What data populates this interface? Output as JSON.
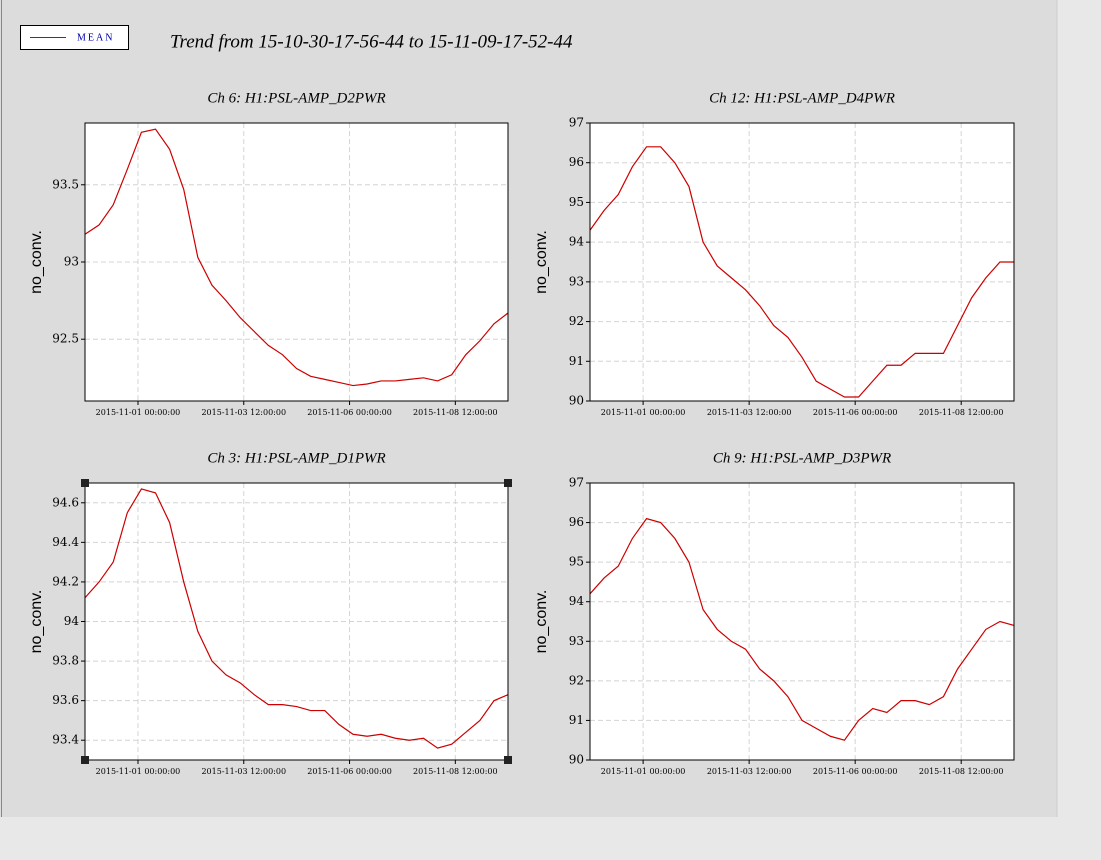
{
  "title": "Trend from 15-10-30-17-56-44 to 15-11-09-17-52-44",
  "chart_data": [
    {
      "type": "line",
      "title": "Ch 6: H1:PSL-AMP_D2PWR",
      "ylabel": "no_conv.",
      "x": [
        "2015-10-30 17:56:44",
        "2015-10-31 01:56:44",
        "2015-10-31 09:56:44",
        "2015-10-31 17:56:44",
        "2015-11-01 01:56:44",
        "2015-11-01 09:56:44",
        "2015-11-01 17:56:44",
        "2015-11-02 01:56:44",
        "2015-11-02 09:56:44",
        "2015-11-02 17:56:44",
        "2015-11-03 01:56:44",
        "2015-11-03 09:56:44",
        "2015-11-03 17:56:44",
        "2015-11-04 01:56:44",
        "2015-11-04 09:56:44",
        "2015-11-04 17:56:44",
        "2015-11-05 01:56:44",
        "2015-11-05 09:56:44",
        "2015-11-05 17:56:44",
        "2015-11-06 01:56:44",
        "2015-11-06 09:56:44",
        "2015-11-06 17:56:44",
        "2015-11-07 01:56:44",
        "2015-11-07 09:56:44",
        "2015-11-07 17:56:44",
        "2015-11-08 01:56:44",
        "2015-11-08 09:56:44",
        "2015-11-08 17:56:44",
        "2015-11-09 01:56:44",
        "2015-11-09 09:56:44",
        "2015-11-09 17:52:44"
      ],
      "series": [
        {
          "name": "MEAN",
          "color": "#cc0000",
          "values": [
            93.18,
            93.24,
            93.37,
            93.6,
            93.84,
            93.86,
            93.73,
            93.47,
            93.03,
            92.85,
            92.75,
            92.64,
            92.55,
            92.46,
            92.4,
            92.31,
            92.26,
            92.24,
            92.22,
            92.2,
            92.21,
            92.23,
            92.23,
            92.24,
            92.25,
            92.23,
            92.27,
            92.4,
            92.49,
            92.6,
            92.67
          ]
        }
      ],
      "xlim": [
        "2015-10-30 17:56:44",
        "2015-11-09 17:52:44"
      ],
      "xticks": [
        "2015-11-01 00:00:00",
        "2015-11-03 12:00:00",
        "2015-11-06 00:00:00",
        "2015-11-08 12:00:00"
      ],
      "ylim": [
        92.1,
        93.9
      ],
      "yticks": [
        92.5,
        93,
        93.5
      ],
      "grid": true
    },
    {
      "type": "line",
      "title": "Ch 12: H1:PSL-AMP_D4PWR",
      "ylabel": "no_conv.",
      "x": [
        "2015-10-30 17:56:44",
        "2015-10-31 01:56:44",
        "2015-10-31 09:56:44",
        "2015-10-31 17:56:44",
        "2015-11-01 01:56:44",
        "2015-11-01 09:56:44",
        "2015-11-01 17:56:44",
        "2015-11-02 01:56:44",
        "2015-11-02 09:56:44",
        "2015-11-02 17:56:44",
        "2015-11-03 01:56:44",
        "2015-11-03 09:56:44",
        "2015-11-03 17:56:44",
        "2015-11-04 01:56:44",
        "2015-11-04 09:56:44",
        "2015-11-04 17:56:44",
        "2015-11-05 01:56:44",
        "2015-11-05 09:56:44",
        "2015-11-05 17:56:44",
        "2015-11-06 01:56:44",
        "2015-11-06 09:56:44",
        "2015-11-06 17:56:44",
        "2015-11-07 01:56:44",
        "2015-11-07 09:56:44",
        "2015-11-07 17:56:44",
        "2015-11-08 01:56:44",
        "2015-11-08 09:56:44",
        "2015-11-08 17:56:44",
        "2015-11-09 01:56:44",
        "2015-11-09 09:56:44",
        "2015-11-09 17:52:44"
      ],
      "series": [
        {
          "name": "MEAN",
          "color": "#cc0000",
          "values": [
            94.3,
            94.8,
            95.2,
            95.9,
            96.4,
            96.4,
            96.0,
            95.4,
            94.0,
            93.4,
            93.1,
            92.8,
            92.4,
            91.9,
            91.6,
            91.1,
            90.5,
            90.3,
            90.1,
            90.1,
            90.5,
            90.9,
            90.9,
            91.2,
            91.2,
            91.2,
            91.9,
            92.6,
            93.1,
            93.5,
            93.5
          ]
        }
      ],
      "xlim": [
        "2015-10-30 17:56:44",
        "2015-11-09 17:52:44"
      ],
      "xticks": [
        "2015-11-01 00:00:00",
        "2015-11-03 12:00:00",
        "2015-11-06 00:00:00",
        "2015-11-08 12:00:00"
      ],
      "ylim": [
        90,
        97
      ],
      "yticks": [
        90,
        91,
        92,
        93,
        94,
        95,
        96,
        97
      ],
      "grid": true
    },
    {
      "type": "line",
      "title": "Ch 3: H1:PSL-AMP_D1PWR",
      "ylabel": "no_conv.",
      "x": [
        "2015-10-30 17:56:44",
        "2015-10-31 01:56:44",
        "2015-10-31 09:56:44",
        "2015-10-31 17:56:44",
        "2015-11-01 01:56:44",
        "2015-11-01 09:56:44",
        "2015-11-01 17:56:44",
        "2015-11-02 01:56:44",
        "2015-11-02 09:56:44",
        "2015-11-02 17:56:44",
        "2015-11-03 01:56:44",
        "2015-11-03 09:56:44",
        "2015-11-03 17:56:44",
        "2015-11-04 01:56:44",
        "2015-11-04 09:56:44",
        "2015-11-04 17:56:44",
        "2015-11-05 01:56:44",
        "2015-11-05 09:56:44",
        "2015-11-05 17:56:44",
        "2015-11-06 01:56:44",
        "2015-11-06 09:56:44",
        "2015-11-06 17:56:44",
        "2015-11-07 01:56:44",
        "2015-11-07 09:56:44",
        "2015-11-07 17:56:44",
        "2015-11-08 01:56:44",
        "2015-11-08 09:56:44",
        "2015-11-08 17:56:44",
        "2015-11-09 01:56:44",
        "2015-11-09 09:56:44",
        "2015-11-09 17:52:44"
      ],
      "series": [
        {
          "name": "MEAN",
          "color": "#cc0000",
          "values": [
            94.12,
            94.2,
            94.3,
            94.55,
            94.67,
            94.65,
            94.5,
            94.2,
            93.95,
            93.8,
            93.73,
            93.69,
            93.63,
            93.58,
            93.58,
            93.57,
            93.55,
            93.55,
            93.48,
            93.43,
            93.42,
            93.43,
            93.41,
            93.4,
            93.41,
            93.36,
            93.38,
            93.44,
            93.5,
            93.6,
            93.63
          ]
        }
      ],
      "xlim": [
        "2015-10-30 17:56:44",
        "2015-11-09 17:52:44"
      ],
      "xticks": [
        "2015-11-01 00:00:00",
        "2015-11-03 12:00:00",
        "2015-11-06 00:00:00",
        "2015-11-08 12:00:00"
      ],
      "ylim": [
        93.3,
        94.7
      ],
      "yticks": [
        93.4,
        93.6,
        93.8,
        94,
        94.2,
        94.4,
        94.6
      ],
      "grid": true
    },
    {
      "type": "line",
      "title": "Ch 9: H1:PSL-AMP_D3PWR",
      "ylabel": "no_conv.",
      "x": [
        "2015-10-30 17:56:44",
        "2015-10-31 01:56:44",
        "2015-10-31 09:56:44",
        "2015-10-31 17:56:44",
        "2015-11-01 01:56:44",
        "2015-11-01 09:56:44",
        "2015-11-01 17:56:44",
        "2015-11-02 01:56:44",
        "2015-11-02 09:56:44",
        "2015-11-02 17:56:44",
        "2015-11-03 01:56:44",
        "2015-11-03 09:56:44",
        "2015-11-03 17:56:44",
        "2015-11-04 01:56:44",
        "2015-11-04 09:56:44",
        "2015-11-04 17:56:44",
        "2015-11-05 01:56:44",
        "2015-11-05 09:56:44",
        "2015-11-05 17:56:44",
        "2015-11-06 01:56:44",
        "2015-11-06 09:56:44",
        "2015-11-06 17:56:44",
        "2015-11-07 01:56:44",
        "2015-11-07 09:56:44",
        "2015-11-07 17:56:44",
        "2015-11-08 01:56:44",
        "2015-11-08 09:56:44",
        "2015-11-08 17:56:44",
        "2015-11-09 01:56:44",
        "2015-11-09 09:56:44",
        "2015-11-09 17:52:44"
      ],
      "series": [
        {
          "name": "MEAN",
          "color": "#cc0000",
          "values": [
            94.2,
            94.6,
            94.9,
            95.6,
            96.1,
            96.0,
            95.6,
            95.0,
            93.8,
            93.3,
            93.0,
            92.8,
            92.3,
            92.0,
            91.6,
            91.0,
            90.8,
            90.6,
            90.5,
            91.0,
            91.3,
            91.2,
            91.5,
            91.5,
            91.4,
            91.6,
            92.3,
            92.8,
            93.3,
            93.5,
            93.4
          ]
        }
      ],
      "xlim": [
        "2015-10-30 17:56:44",
        "2015-11-09 17:52:44"
      ],
      "xticks": [
        "2015-11-01 00:00:00",
        "2015-11-03 12:00:00",
        "2015-11-06 00:00:00",
        "2015-11-08 12:00:00"
      ],
      "ylim": [
        90,
        97
      ],
      "yticks": [
        90,
        91,
        92,
        93,
        94,
        95,
        96,
        97
      ],
      "grid": true
    }
  ]
}
